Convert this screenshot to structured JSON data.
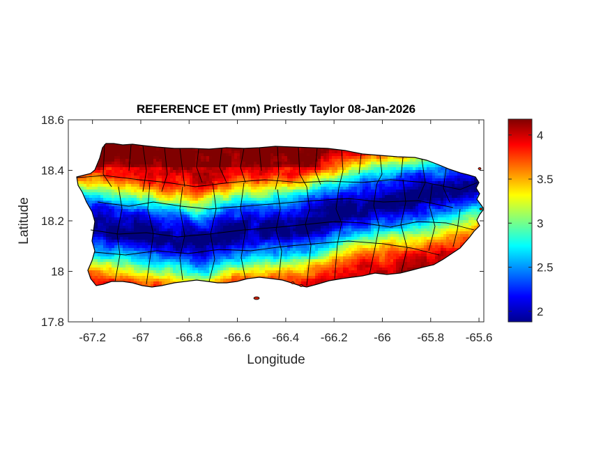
{
  "chart_data": {
    "type": "heatmap",
    "title": "REFERENCE ET (mm) Priestly Taylor 08-Jan-2026",
    "xlabel": "Longitude",
    "ylabel": "Latitude",
    "xlim": [
      -67.3,
      -65.58
    ],
    "ylim": [
      17.8,
      18.6
    ],
    "xticks": [
      "-67.2",
      "-67",
      "-66.8",
      "-66.6",
      "-66.4",
      "-66.2",
      "-66",
      "-65.8",
      "-65.6"
    ],
    "xtick_values": [
      -67.2,
      -67.0,
      -66.8,
      -66.6,
      -66.4,
      -66.2,
      -66.0,
      -65.8,
      -65.6
    ],
    "yticks": [
      "18.6",
      "18.4",
      "18.2",
      "18",
      "17.8"
    ],
    "ytick_values": [
      18.6,
      18.4,
      18.2,
      18.0,
      17.8
    ],
    "colorbar": {
      "colormap": "jet",
      "range": [
        1.88,
        4.18
      ],
      "ticks": [
        "4",
        "3.5",
        "3",
        "2.5",
        "2"
      ],
      "tick_values": [
        4.0,
        3.5,
        3.0,
        2.5,
        2.0
      ]
    },
    "grid": false,
    "region": "Puerto Rico",
    "pattern": "High ET (about 3.8–4.2 mm) along the northern and southern coasts; a low-ET band (about 2.0–3.0 mm) along the central mountain range from the west to the northeast"
  }
}
